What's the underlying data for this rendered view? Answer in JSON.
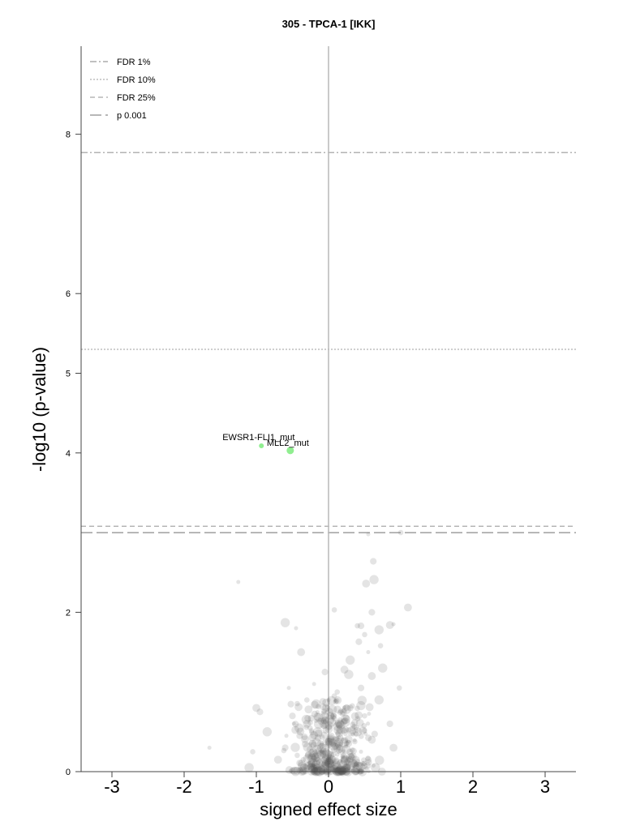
{
  "chart_data": {
    "type": "scatter",
    "title": "305 - TPCA-1 [IKK]",
    "xlabel": "signed effect size",
    "ylabel": "-log10 (p-value)",
    "xlim": [
      -3.4,
      3.4
    ],
    "ylim": [
      0,
      8.9
    ],
    "x_ticks": [
      "-3",
      "-2",
      "-1",
      "0",
      "1",
      "2",
      "3"
    ],
    "y_ticks": [
      "0",
      "2",
      "4",
      "5",
      "6",
      "8"
    ],
    "reference_lines": [
      {
        "name": "FDR 1%",
        "y": 7.77,
        "style": "dash-dot"
      },
      {
        "name": "FDR 10%",
        "y": 5.3,
        "style": "dotted"
      },
      {
        "name": "FDR 25%",
        "y": 3.08,
        "style": "dashed"
      },
      {
        "name": "p 0.001",
        "y": 3.0,
        "style": "long-dash"
      }
    ],
    "legend_position": "top-left",
    "highlighted_points": [
      {
        "label": "EWSR1-FLI1_mut",
        "x": -0.93,
        "y": 4.09,
        "color": "#90ee90"
      },
      {
        "label": "MLL2_mut",
        "x": -0.53,
        "y": 4.03,
        "color": "#90ee90"
      }
    ],
    "background_points": [
      [
        0.55,
        2.98
      ],
      [
        1.0,
        3.0
      ],
      [
        0.62,
        2.64
      ],
      [
        0.52,
        2.36
      ],
      [
        0.63,
        2.41
      ],
      [
        -1.25,
        2.38
      ],
      [
        0.08,
        2.03
      ],
      [
        0.6,
        2.0
      ],
      [
        1.1,
        2.06
      ],
      [
        -0.6,
        1.87
      ],
      [
        -0.45,
        1.8
      ],
      [
        0.4,
        1.83
      ],
      [
        0.45,
        1.83
      ],
      [
        0.85,
        1.84
      ],
      [
        0.7,
        1.78
      ],
      [
        0.9,
        1.85
      ],
      [
        0.5,
        1.72
      ],
      [
        0.42,
        1.63
      ],
      [
        -0.38,
        1.5
      ],
      [
        0.3,
        1.4
      ],
      [
        0.55,
        1.5
      ],
      [
        0.72,
        1.58
      ],
      [
        -0.05,
        1.25
      ],
      [
        0.22,
        1.28
      ],
      [
        0.28,
        1.22
      ],
      [
        -0.2,
        1.1
      ],
      [
        0.12,
        1.0
      ],
      [
        0.45,
        1.05
      ],
      [
        0.6,
        1.2
      ],
      [
        0.75,
        1.3
      ],
      [
        -0.55,
        1.05
      ],
      [
        0.98,
        1.05
      ],
      [
        -0.95,
        0.75
      ],
      [
        -1.0,
        0.8
      ],
      [
        -0.85,
        0.5
      ],
      [
        -1.65,
        0.3
      ],
      [
        -1.05,
        0.25
      ],
      [
        -0.5,
        0.7
      ],
      [
        -0.3,
        0.6
      ],
      [
        -0.15,
        0.5
      ],
      [
        -0.1,
        0.3
      ],
      [
        0.0,
        0.15
      ],
      [
        0.05,
        0.05
      ],
      [
        0.1,
        0.4
      ],
      [
        0.15,
        0.6
      ],
      [
        0.2,
        0.2
      ],
      [
        0.25,
        0.35
      ],
      [
        0.3,
        0.8
      ],
      [
        0.35,
        0.1
      ],
      [
        0.4,
        0.5
      ],
      [
        0.45,
        0.25
      ],
      [
        0.5,
        0.7
      ],
      [
        0.55,
        0.15
      ],
      [
        -0.05,
        0.7
      ],
      [
        -0.2,
        0.2
      ],
      [
        -0.25,
        0.35
      ],
      [
        -0.35,
        0.15
      ],
      [
        -0.4,
        0.45
      ],
      [
        0.6,
        0.4
      ],
      [
        0.7,
        0.9
      ],
      [
        0.0,
        0.9
      ],
      [
        0.08,
        0.95
      ],
      [
        -0.6,
        0.3
      ],
      [
        -0.7,
        0.15
      ],
      [
        0.65,
        0.05
      ],
      [
        -0.12,
        0.05
      ],
      [
        -0.3,
        0.9
      ],
      [
        0.85,
        0.6
      ],
      [
        0.9,
        0.3
      ],
      [
        -1.1,
        0.05
      ]
    ]
  }
}
